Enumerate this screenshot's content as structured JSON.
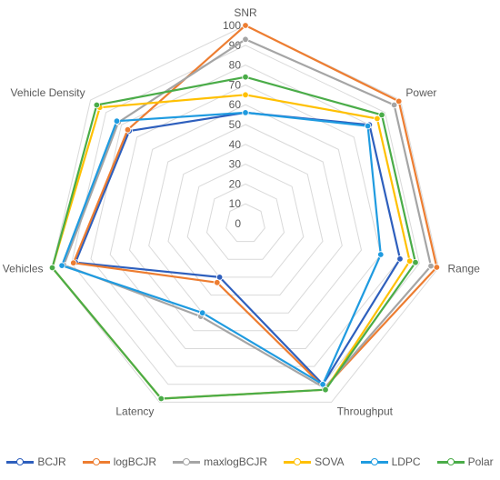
{
  "chart_data": {
    "type": "radar",
    "title": "",
    "axes": [
      "SNR",
      "Power",
      "Range",
      "Throughput",
      "Latency",
      "Vehicles",
      "Vehicle Density"
    ],
    "rlim": [
      0,
      100
    ],
    "ticks": [
      "0",
      "10",
      "20",
      "30",
      "40",
      "50",
      "60",
      "70",
      "80",
      "90",
      "100"
    ],
    "tick_values": [
      0,
      10,
      20,
      30,
      40,
      50,
      60,
      70,
      80,
      90,
      100
    ],
    "grid": true,
    "legend_position": "bottom",
    "series": [
      {
        "name": "BCJR",
        "color": "#2e5fbd",
        "values": [
          56,
          80,
          80,
          90,
          30,
          88,
          75
        ]
      },
      {
        "name": "logBCJR",
        "color": "#ed7d31",
        "values": [
          100,
          99,
          99,
          92,
          33,
          89,
          76
        ]
      },
      {
        "name": "maxlogBCJR",
        "color": "#a5a5a5",
        "values": [
          93,
          96,
          96,
          92,
          52,
          94,
          82
        ]
      },
      {
        "name": "SOVA",
        "color": "#ffc000",
        "values": [
          65,
          85,
          85,
          93,
          98,
          100,
          94
        ]
      },
      {
        "name": "LDPC",
        "color": "#1f9be0",
        "values": [
          56,
          79,
          70,
          90,
          50,
          95,
          83
        ]
      },
      {
        "name": "Polar",
        "color": "#4aac48",
        "values": [
          74,
          88,
          88,
          93,
          98,
          100,
          96
        ]
      }
    ]
  }
}
